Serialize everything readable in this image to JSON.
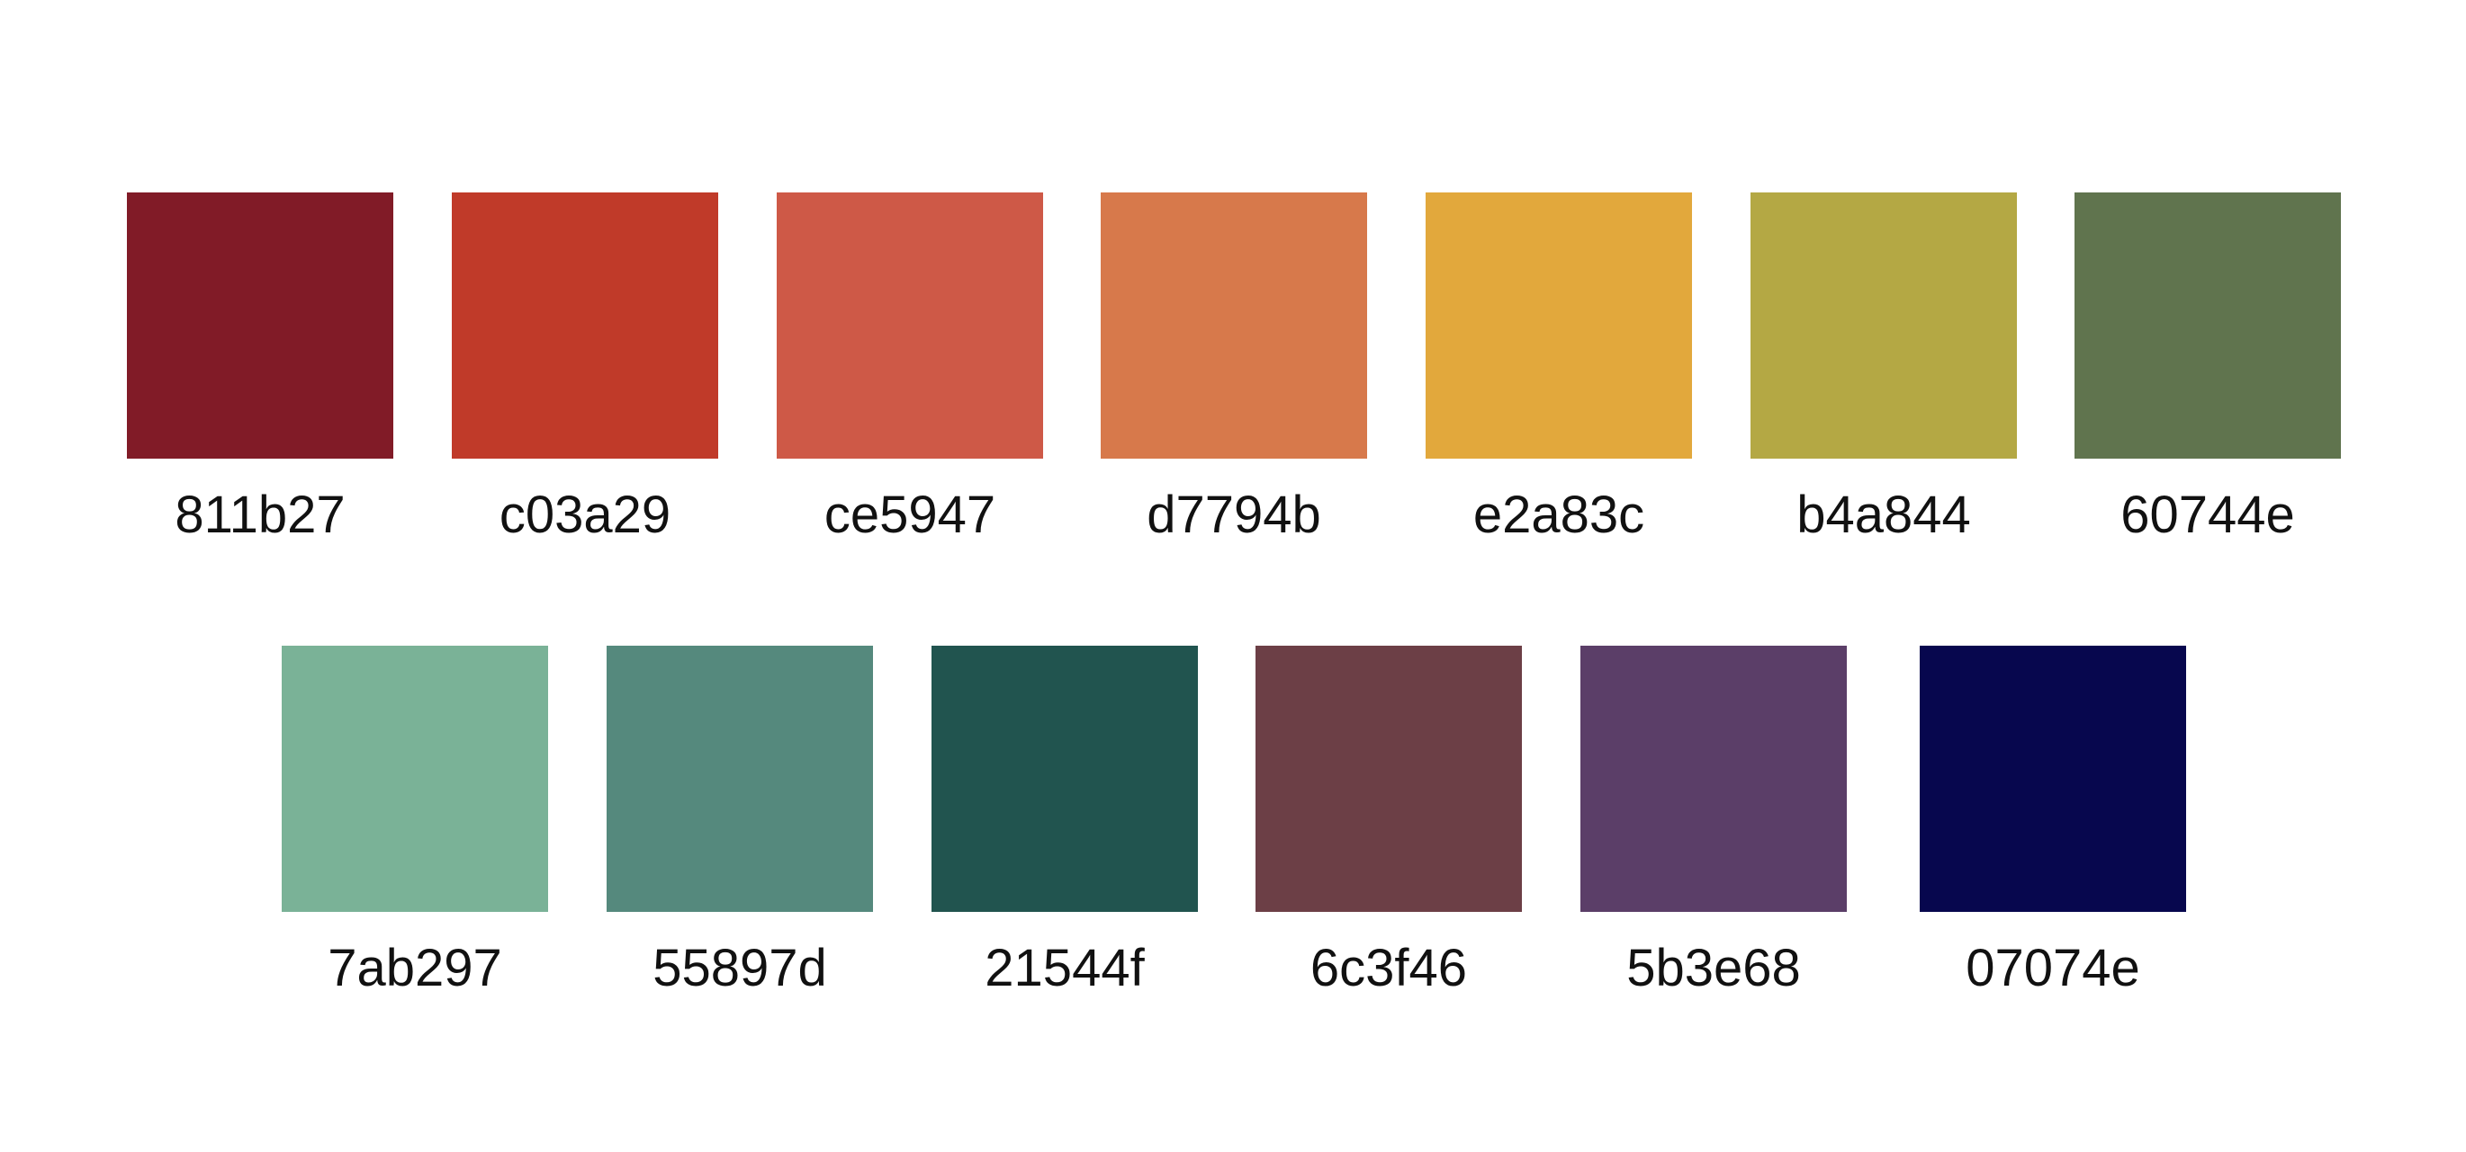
{
  "palette": {
    "row1": [
      {
        "label": "811b27",
        "color": "#811b27"
      },
      {
        "label": "c03a29",
        "color": "#c03a29"
      },
      {
        "label": "ce5947",
        "color": "#ce5947"
      },
      {
        "label": "d7794b",
        "color": "#d7794b"
      },
      {
        "label": "e2a83c",
        "color": "#e2a83c"
      },
      {
        "label": "b4a844",
        "color": "#b4a844"
      },
      {
        "label": "60744e",
        "color": "#60744e"
      }
    ],
    "row2": [
      {
        "label": "7ab297",
        "color": "#7ab297"
      },
      {
        "label": "55897d",
        "color": "#55897d"
      },
      {
        "label": "21544f",
        "color": "#21544f"
      },
      {
        "label": "6c3f46",
        "color": "#6c3f46"
      },
      {
        "label": "5b3e68",
        "color": "#5b3e68"
      },
      {
        "label": "07074e",
        "color": "#07074e"
      }
    ]
  }
}
